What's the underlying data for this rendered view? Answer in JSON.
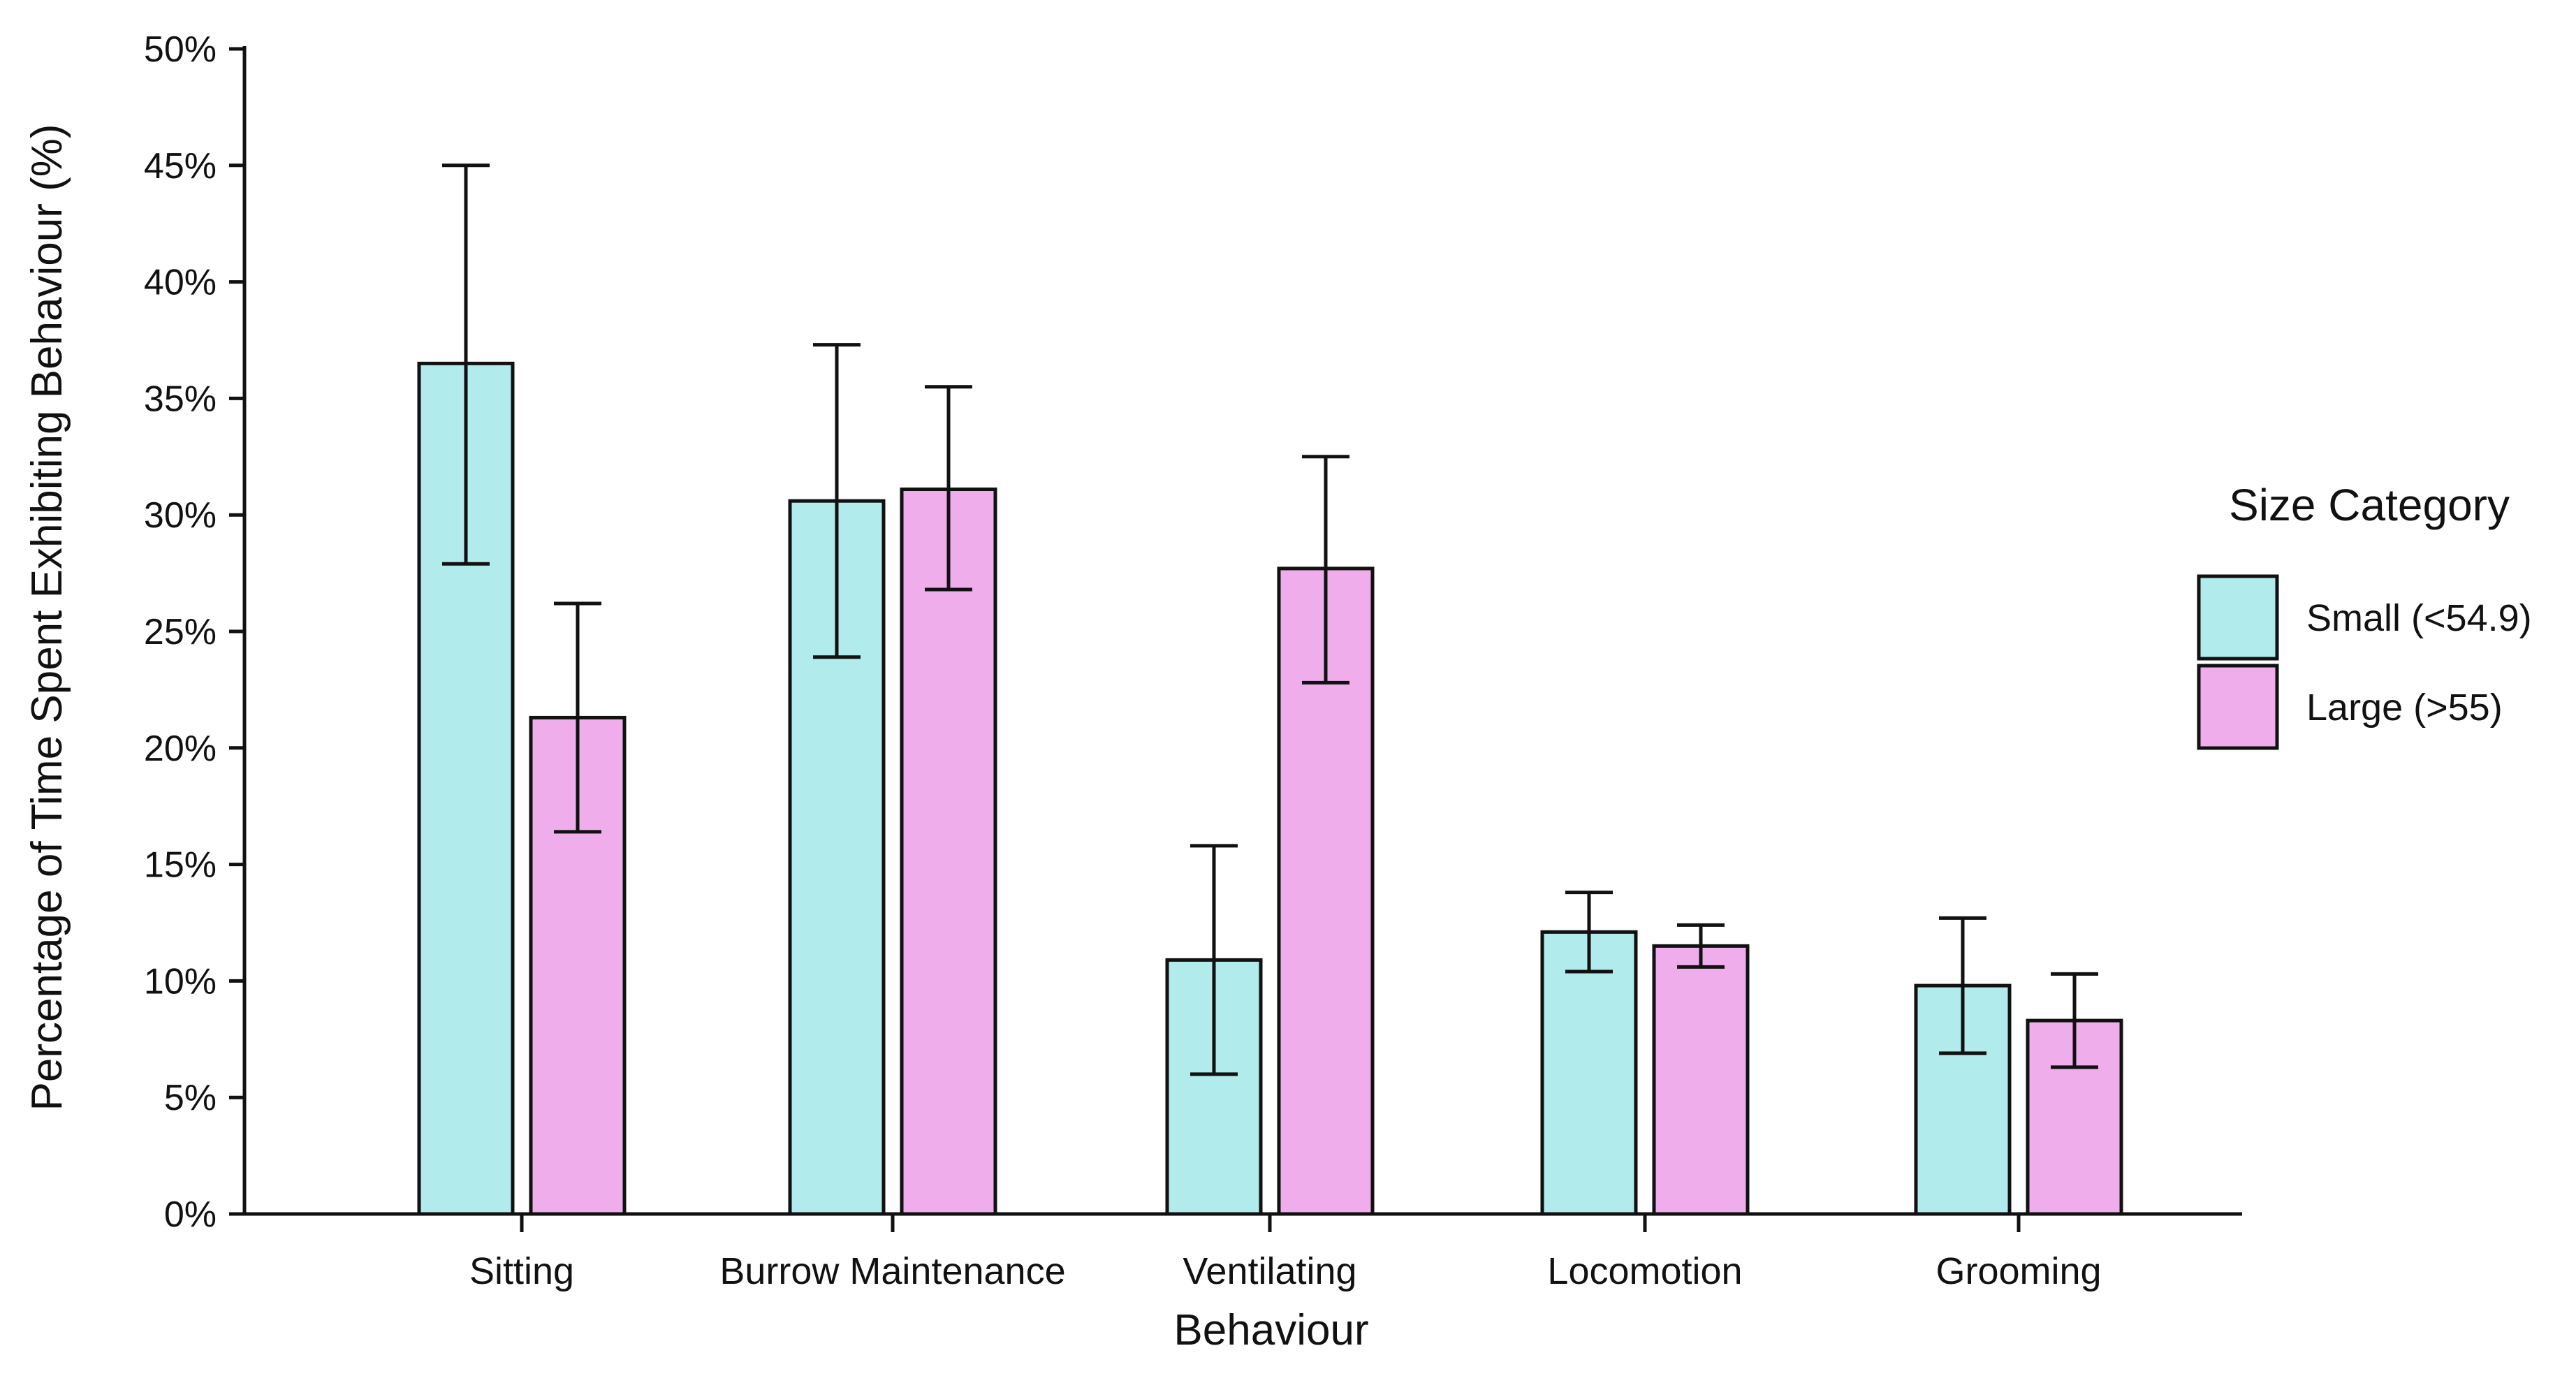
{
  "chart_data": {
    "type": "bar",
    "title": "",
    "xlabel": "Behaviour",
    "ylabel": "Percentage of Time Spent Exhibiting Behaviour (%)",
    "ylim": [
      0,
      50
    ],
    "yticks": [
      0,
      5,
      10,
      15,
      20,
      25,
      30,
      35,
      40,
      45,
      50
    ],
    "ytick_labels": [
      "0%",
      "5%",
      "10%",
      "15%",
      "20%",
      "25%",
      "30%",
      "35%",
      "40%",
      "45%",
      "50%"
    ],
    "categories": [
      "Sitting",
      "Burrow Maintenance",
      "Ventilating",
      "Locomotion",
      "Grooming"
    ],
    "series": [
      {
        "name": "Small (<54.9)",
        "color": "#b2ebeb",
        "values": [
          36.5,
          30.6,
          10.9,
          12.1,
          9.8
        ],
        "error_low": [
          27.9,
          23.9,
          6.0,
          10.4,
          6.9
        ],
        "error_high": [
          45.0,
          37.3,
          15.8,
          13.8,
          12.7
        ]
      },
      {
        "name": "Large (>55)",
        "color": "#efaeeb",
        "values": [
          21.3,
          31.1,
          27.7,
          11.5,
          8.3
        ],
        "error_low": [
          16.4,
          26.8,
          22.8,
          10.6,
          6.3
        ],
        "error_high": [
          26.2,
          35.5,
          32.5,
          12.4,
          10.3
        ]
      }
    ],
    "grid": false,
    "legend": {
      "title": "Size Category",
      "placement": "right"
    }
  }
}
